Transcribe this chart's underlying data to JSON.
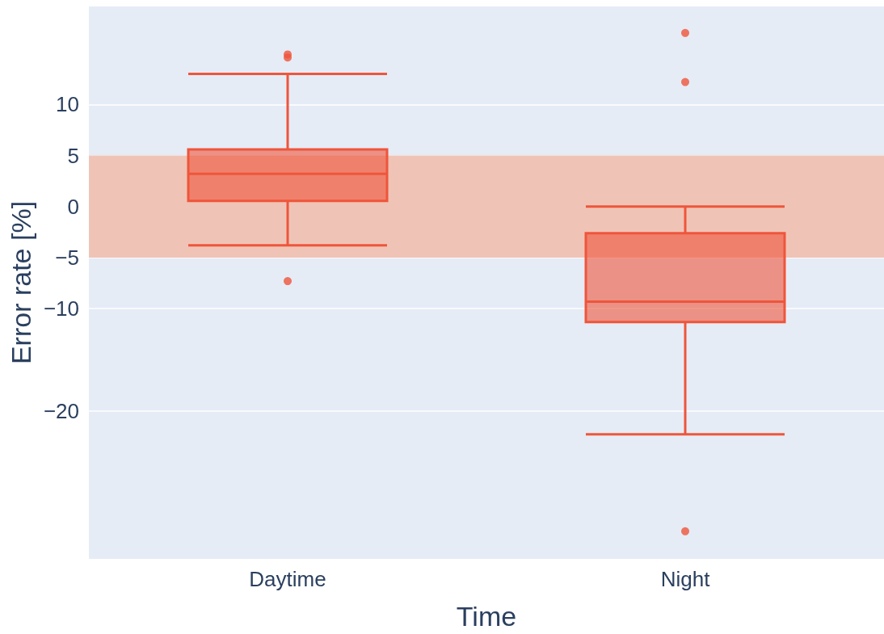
{
  "chart_data": {
    "type": "box",
    "xlabel": "Time",
    "ylabel": "Error rate [%]",
    "categories": [
      "Daytime",
      "Night"
    ],
    "series": [
      {
        "color": "#ef553b",
        "boxes": [
          {
            "low": -3.8,
            "q1": 0.55,
            "median": 3.2,
            "q3": 5.6,
            "high": 13,
            "outliers": [
              14.9,
              14.6,
              -7.3
            ]
          },
          {
            "low": -22.3,
            "q1": -11.3,
            "median": -9.3,
            "q3": -2.6,
            "high": 0,
            "outliers": [
              17,
              12.2,
              -31.8
            ]
          }
        ]
      }
    ],
    "ylim": [
      -34.5,
      19.6
    ],
    "yticks": [
      -20,
      -10,
      -5,
      0,
      5,
      10
    ],
    "bands": [
      {
        "axis": "y",
        "from": -5,
        "to": 5,
        "color": "#efc4b6"
      }
    ],
    "grid": true
  }
}
